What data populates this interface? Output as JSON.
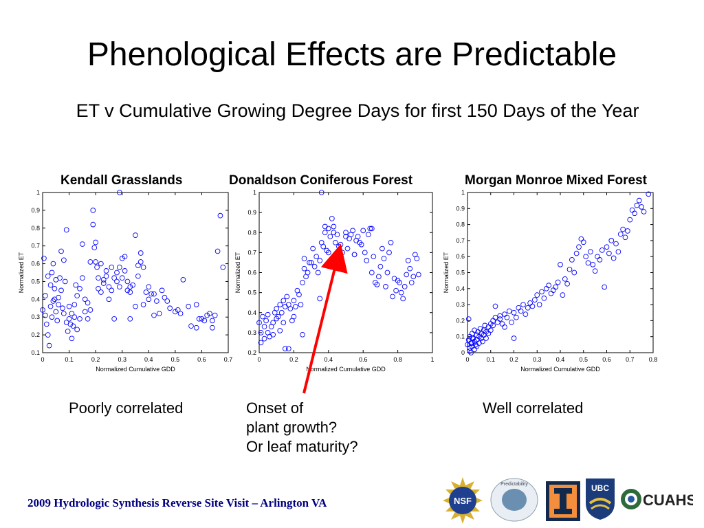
{
  "slide": {
    "title": "Phenological Effects are Predictable",
    "subtitle": "ET v Cumulative Growing Degree Days for first 150 Days of the Year"
  },
  "annotations": {
    "poor": "Poorly correlated",
    "onset_1": "Onset of",
    "onset_2": "plant growth?",
    "onset_3": "Or leaf maturity?",
    "well": "Well correlated"
  },
  "footer": "2009 Hydrologic Synthesis Reverse Site Visit – Arlington VA",
  "logos": {
    "nsf_text": "NSF",
    "predictability_text": "Predictability",
    "ubc_text": "UBC",
    "cuahsi_text": "CUAHSI"
  },
  "colors": {
    "marker": "#0000ff",
    "arrow": "#ff0000",
    "footer": "#000080"
  },
  "chart_data": [
    {
      "type": "scatter",
      "title": "Kendall Grasslands",
      "xlabel": "Normalized Cumulative GDD",
      "ylabel": "Normalized ET",
      "xlim": [
        0,
        0.7
      ],
      "ylim": [
        0.1,
        1.0
      ],
      "xticks": [
        "0",
        "0.1",
        "0.2",
        "0.3",
        "0.4",
        "0.5",
        "0.6",
        "0.7"
      ],
      "yticks": [
        "0.1",
        "0.2",
        "0.3",
        "0.4",
        "0.5",
        "0.6",
        "0.7",
        "0.8",
        "0.9",
        "1"
      ],
      "xtick_values": [
        0,
        0.1,
        0.2,
        0.3,
        0.4,
        0.5,
        0.6,
        0.7
      ],
      "ytick_values": [
        0.1,
        0.2,
        0.3,
        0.4,
        0.5,
        0.6,
        0.7,
        0.8,
        0.9,
        1.0
      ],
      "marker": "circle-open",
      "x": [
        0.0,
        0.005,
        0.01,
        0.01,
        0.015,
        0.02,
        0.02,
        0.025,
        0.03,
        0.03,
        0.035,
        0.035,
        0.04,
        0.04,
        0.045,
        0.045,
        0.05,
        0.05,
        0.055,
        0.06,
        0.06,
        0.065,
        0.07,
        0.07,
        0.075,
        0.08,
        0.08,
        0.085,
        0.09,
        0.09,
        0.095,
        0.1,
        0.1,
        0.105,
        0.11,
        0.11,
        0.115,
        0.12,
        0.12,
        0.125,
        0.13,
        0.13,
        0.14,
        0.14,
        0.15,
        0.15,
        0.16,
        0.16,
        0.17,
        0.17,
        0.18,
        0.18,
        0.19,
        0.19,
        0.195,
        0.2,
        0.2,
        0.205,
        0.21,
        0.21,
        0.22,
        0.22,
        0.23,
        0.23,
        0.24,
        0.24,
        0.25,
        0.25,
        0.26,
        0.26,
        0.27,
        0.27,
        0.28,
        0.28,
        0.29,
        0.29,
        0.3,
        0.3,
        0.31,
        0.31,
        0.32,
        0.32,
        0.33,
        0.33,
        0.34,
        0.35,
        0.35,
        0.36,
        0.36,
        0.37,
        0.37,
        0.38,
        0.38,
        0.39,
        0.4,
        0.4,
        0.41,
        0.42,
        0.42,
        0.43,
        0.44,
        0.45,
        0.46,
        0.47,
        0.48,
        0.5,
        0.51,
        0.52,
        0.53,
        0.55,
        0.56,
        0.58,
        0.59,
        0.6,
        0.61,
        0.62,
        0.63,
        0.64,
        0.65,
        0.66,
        0.67
      ],
      "y": [
        0.34,
        0.63,
        0.31,
        0.42,
        0.26,
        0.2,
        0.53,
        0.14,
        0.36,
        0.48,
        0.3,
        0.55,
        0.39,
        0.6,
        0.46,
        0.4,
        0.33,
        0.51,
        0.28,
        0.37,
        0.41,
        0.52,
        0.45,
        0.67,
        0.35,
        0.32,
        0.62,
        0.5,
        0.27,
        0.79,
        0.22,
        0.36,
        0.29,
        0.26,
        0.32,
        0.18,
        0.25,
        0.3,
        0.37,
        0.48,
        0.42,
        0.23,
        0.46,
        0.29,
        0.71,
        0.52,
        0.33,
        0.4,
        0.29,
        0.38,
        0.34,
        0.61,
        0.9,
        0.82,
        0.69,
        0.72,
        0.61,
        0.58,
        0.46,
        0.52,
        0.44,
        0.6,
        0.49,
        0.51,
        0.56,
        0.53,
        0.4,
        0.47,
        0.45,
        0.58,
        0.52,
        0.29,
        0.5,
        0.55,
        0.47,
        0.58,
        0.52,
        0.63,
        0.64,
        0.56,
        0.45,
        0.5,
        0.47,
        0.44,
        0.48,
        0.76,
        0.36,
        0.59,
        0.53,
        0.61,
        0.66,
        0.58,
        0.37,
        0.44,
        0.4,
        0.47,
        0.43,
        0.43,
        0.31,
        0.39,
        0.32,
        0.45,
        0.41,
        0.39,
        0.35,
        0.33,
        0.34,
        0.32,
        0.51,
        0.36,
        0.25,
        0.37,
        0.29,
        0.29,
        0.28,
        0.31,
        0.32,
        0.28,
        0.31,
        0.67,
        0.87
      ],
      "y_extra_points": [
        [
          0.29,
          1.0
        ],
        [
          0.33,
          0.29
        ],
        [
          0.58,
          0.24
        ],
        [
          0.64,
          0.24
        ],
        [
          0.68,
          0.58
        ]
      ]
    },
    {
      "type": "scatter",
      "title": "Donaldson Coniferous Forest",
      "xlabel": "Normalized Cumulative GDD",
      "ylabel": "Normalized ET",
      "xlim": [
        0,
        1.0
      ],
      "ylim": [
        0.2,
        1.0
      ],
      "xticks": [
        "0",
        "0.2",
        "0.4",
        "0.6",
        "0.8",
        "1"
      ],
      "yticks": [
        "0.2",
        "0.3",
        "0.4",
        "0.5",
        "0.6",
        "0.7",
        "0.8",
        "0.9",
        "1"
      ],
      "xtick_values": [
        0,
        0.2,
        0.4,
        0.6,
        0.8,
        1.0
      ],
      "ytick_values": [
        0.2,
        0.3,
        0.4,
        0.5,
        0.6,
        0.7,
        0.8,
        0.9,
        1.0
      ],
      "marker": "circle-open",
      "x": [
        0.0,
        0.01,
        0.01,
        0.02,
        0.03,
        0.03,
        0.04,
        0.05,
        0.05,
        0.06,
        0.07,
        0.08,
        0.08,
        0.09,
        0.1,
        0.1,
        0.11,
        0.12,
        0.12,
        0.13,
        0.14,
        0.14,
        0.15,
        0.16,
        0.17,
        0.17,
        0.18,
        0.19,
        0.2,
        0.2,
        0.21,
        0.22,
        0.23,
        0.24,
        0.25,
        0.26,
        0.26,
        0.27,
        0.28,
        0.29,
        0.3,
        0.31,
        0.32,
        0.33,
        0.34,
        0.35,
        0.36,
        0.37,
        0.38,
        0.38,
        0.39,
        0.4,
        0.4,
        0.41,
        0.42,
        0.43,
        0.43,
        0.44,
        0.45,
        0.46,
        0.47,
        0.48,
        0.5,
        0.5,
        0.51,
        0.52,
        0.53,
        0.54,
        0.55,
        0.56,
        0.57,
        0.58,
        0.59,
        0.6,
        0.61,
        0.62,
        0.63,
        0.64,
        0.65,
        0.66,
        0.67,
        0.68,
        0.69,
        0.7,
        0.71,
        0.72,
        0.73,
        0.74,
        0.75,
        0.76,
        0.77,
        0.78,
        0.79,
        0.8,
        0.81,
        0.82,
        0.83,
        0.84,
        0.85,
        0.86,
        0.87,
        0.88,
        0.89,
        0.9,
        0.91,
        0.92,
        0.15,
        0.25,
        0.35,
        0.55,
        0.65
      ],
      "y": [
        0.35,
        0.25,
        0.3,
        0.38,
        0.33,
        0.27,
        0.36,
        0.3,
        0.39,
        0.28,
        0.33,
        0.35,
        0.29,
        0.4,
        0.37,
        0.42,
        0.38,
        0.44,
        0.31,
        0.4,
        0.46,
        0.35,
        0.43,
        0.48,
        0.22,
        0.44,
        0.42,
        0.36,
        0.46,
        0.38,
        0.43,
        0.51,
        0.49,
        0.44,
        0.55,
        0.62,
        0.67,
        0.58,
        0.6,
        0.65,
        0.65,
        0.72,
        0.63,
        0.68,
        0.6,
        0.66,
        0.75,
        0.73,
        0.8,
        0.83,
        0.71,
        0.82,
        0.7,
        0.78,
        0.87,
        0.68,
        0.8,
        0.75,
        0.79,
        0.73,
        0.74,
        0.7,
        0.78,
        0.8,
        0.72,
        0.77,
        0.79,
        0.81,
        0.69,
        0.76,
        0.78,
        0.75,
        0.74,
        0.81,
        0.7,
        0.66,
        0.79,
        0.82,
        0.6,
        0.68,
        0.55,
        0.54,
        0.58,
        0.63,
        0.72,
        0.67,
        0.53,
        0.6,
        0.7,
        0.75,
        0.48,
        0.57,
        0.51,
        0.56,
        0.55,
        0.5,
        0.47,
        0.53,
        0.59,
        0.66,
        0.62,
        0.55,
        0.58,
        0.69,
        0.67,
        0.59,
        0.22,
        0.29,
        0.47,
        0.69,
        0.82
      ],
      "y_extra_points": [
        [
          0.36,
          1.0
        ],
        [
          0.43,
          0.83
        ]
      ]
    },
    {
      "type": "scatter",
      "title": "Morgan Monroe Mixed Forest",
      "xlabel": "Normalized Cumulative GDD",
      "ylabel": "Normalized ET",
      "xlim": [
        0,
        0.8
      ],
      "ylim": [
        0,
        1.0
      ],
      "xticks": [
        "0",
        "0.1",
        "0.2",
        "0.3",
        "0.4",
        "0.5",
        "0.6",
        "0.7",
        "0.8"
      ],
      "yticks": [
        "0",
        "0.1",
        "0.2",
        "0.3",
        "0.4",
        "0.5",
        "0.6",
        "0.7",
        "0.8",
        "0.9",
        "1"
      ],
      "xtick_values": [
        0,
        0.1,
        0.2,
        0.3,
        0.4,
        0.5,
        0.6,
        0.7,
        0.8
      ],
      "ytick_values": [
        0,
        0.1,
        0.2,
        0.3,
        0.4,
        0.5,
        0.6,
        0.7,
        0.8,
        0.9,
        1.0
      ],
      "marker": "circle-open",
      "x": [
        0.0,
        0.005,
        0.01,
        0.01,
        0.015,
        0.02,
        0.02,
        0.025,
        0.03,
        0.03,
        0.035,
        0.04,
        0.04,
        0.045,
        0.05,
        0.05,
        0.055,
        0.06,
        0.06,
        0.065,
        0.07,
        0.07,
        0.075,
        0.08,
        0.08,
        0.09,
        0.09,
        0.1,
        0.1,
        0.11,
        0.11,
        0.12,
        0.12,
        0.13,
        0.14,
        0.14,
        0.15,
        0.16,
        0.16,
        0.17,
        0.18,
        0.19,
        0.2,
        0.2,
        0.21,
        0.22,
        0.23,
        0.24,
        0.25,
        0.26,
        0.27,
        0.28,
        0.29,
        0.3,
        0.31,
        0.32,
        0.33,
        0.34,
        0.35,
        0.36,
        0.37,
        0.38,
        0.39,
        0.4,
        0.41,
        0.42,
        0.43,
        0.44,
        0.45,
        0.46,
        0.47,
        0.48,
        0.49,
        0.5,
        0.51,
        0.52,
        0.53,
        0.54,
        0.55,
        0.56,
        0.57,
        0.58,
        0.59,
        0.6,
        0.61,
        0.62,
        0.63,
        0.64,
        0.65,
        0.66,
        0.67,
        0.68,
        0.69,
        0.7,
        0.71,
        0.72,
        0.73,
        0.74,
        0.75,
        0.76,
        0.78,
        0.01,
        0.02,
        0.03,
        0.02,
        0.04,
        0.005,
        0.015
      ],
      "y": [
        0.05,
        0.08,
        0.03,
        0.1,
        0.06,
        0.12,
        0.04,
        0.09,
        0.07,
        0.14,
        0.05,
        0.11,
        0.08,
        0.13,
        0.06,
        0.1,
        0.15,
        0.09,
        0.12,
        0.07,
        0.14,
        0.11,
        0.17,
        0.13,
        0.09,
        0.16,
        0.12,
        0.18,
        0.14,
        0.2,
        0.17,
        0.22,
        0.29,
        0.19,
        0.21,
        0.23,
        0.18,
        0.24,
        0.16,
        0.22,
        0.26,
        0.19,
        0.25,
        0.09,
        0.22,
        0.28,
        0.26,
        0.3,
        0.24,
        0.28,
        0.31,
        0.29,
        0.33,
        0.36,
        0.3,
        0.38,
        0.34,
        0.4,
        0.42,
        0.37,
        0.39,
        0.41,
        0.44,
        0.55,
        0.36,
        0.46,
        0.43,
        0.52,
        0.58,
        0.5,
        0.62,
        0.66,
        0.71,
        0.69,
        0.6,
        0.56,
        0.63,
        0.55,
        0.51,
        0.6,
        0.58,
        0.64,
        0.41,
        0.66,
        0.62,
        0.7,
        0.59,
        0.68,
        0.63,
        0.74,
        0.77,
        0.72,
        0.76,
        0.83,
        0.89,
        0.87,
        0.92,
        0.95,
        0.91,
        0.88,
        0.99,
        0.01,
        0.06,
        0.02,
        0.09,
        0.04,
        0.21,
        0.0
      ],
      "y_extra_points": []
    }
  ]
}
